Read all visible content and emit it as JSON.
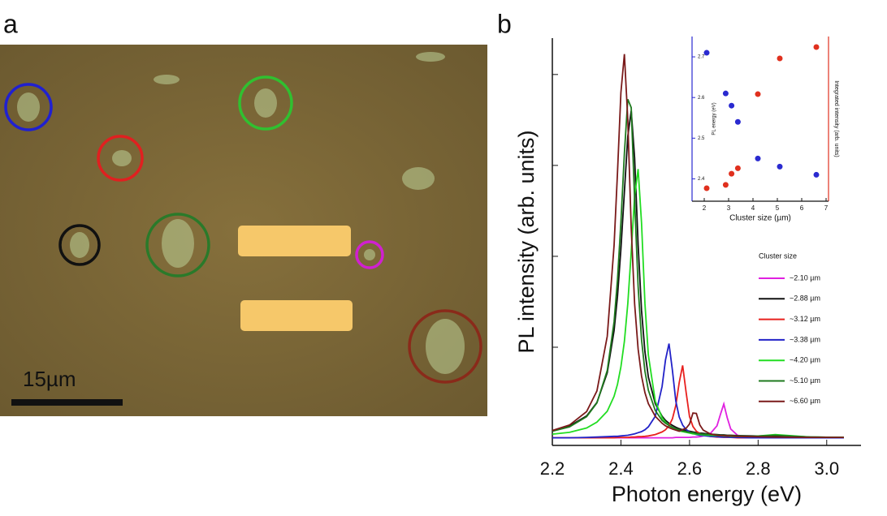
{
  "panels": {
    "a": {
      "label": "a",
      "scale_bar": "15µm"
    }
  },
  "chart_data": [
    {
      "type": "line",
      "panel_label": "b",
      "x_label": "Photon energy (eV)",
      "y_label": "PL intensity (arb. units)",
      "legend_title": "Cluster size",
      "legend": "right",
      "xlim": [
        2.2,
        3.1
      ],
      "ylim": [
        -0.02,
        1.1
      ],
      "xticks": [
        2.2,
        2.4,
        2.6,
        2.8,
        {
          "value": 3.0,
          "label": "3.0"
        }
      ],
      "yticks": [
        0.25,
        0.5,
        0.75,
        1.0
      ],
      "x": [
        2.2,
        2.25,
        2.3,
        2.33,
        2.36,
        2.38,
        2.39,
        2.4,
        2.41,
        2.42,
        2.43,
        2.44,
        2.45,
        2.46,
        2.47,
        2.48,
        2.5,
        2.52,
        2.53,
        2.54,
        2.55,
        2.56,
        2.57,
        2.58,
        2.59,
        2.6,
        2.61,
        2.62,
        2.63,
        2.64,
        2.66,
        2.68,
        2.69,
        2.7,
        2.71,
        2.72,
        2.74,
        2.78,
        2.85,
        2.95,
        3.05
      ],
      "series": [
        {
          "name": "~2.10 µm",
          "color": "#e020e0",
          "values": [
            0.001,
            0.001,
            0.001,
            0.001,
            0.001,
            0.001,
            0.001,
            0.001,
            0.001,
            0.001,
            0.001,
            0.001,
            0.001,
            0.001,
            0.001,
            0.001,
            0.001,
            0.001,
            0.001,
            0.001,
            0.001,
            0.002,
            0.002,
            0.002,
            0.002,
            0.002,
            0.003,
            0.003,
            0.004,
            0.006,
            0.012,
            0.034,
            0.065,
            0.094,
            0.056,
            0.025,
            0.008,
            0.002,
            0.001,
            0.001,
            0.001
          ]
        },
        {
          "name": "~2.88 µm",
          "color": "#111111",
          "values": [
            0.02,
            0.033,
            0.061,
            0.098,
            0.18,
            0.296,
            0.39,
            0.52,
            0.677,
            0.83,
            0.9,
            0.77,
            0.532,
            0.351,
            0.238,
            0.168,
            0.095,
            0.06,
            0.049,
            0.041,
            0.035,
            0.03,
            0.026,
            0.023,
            0.021,
            0.019,
            0.017,
            0.015,
            0.014,
            0.013,
            0.011,
            0.01,
            0.009,
            0.009,
            0.008,
            0.008,
            0.007,
            0.006,
            0.005,
            0.003,
            0.002
          ]
        },
        {
          "name": "~3.12 µm",
          "color": "#e8201e",
          "values": [
            0.001,
            0.001,
            0.001,
            0.001,
            0.001,
            0.001,
            0.002,
            0.002,
            0.002,
            0.002,
            0.003,
            0.003,
            0.004,
            0.004,
            0.005,
            0.006,
            0.01,
            0.017,
            0.023,
            0.034,
            0.053,
            0.09,
            0.153,
            0.2,
            0.126,
            0.059,
            0.032,
            0.019,
            0.013,
            0.009,
            0.005,
            0.003,
            0.003,
            0.002,
            0.002,
            0.002,
            0.001,
            0.001,
            0.001,
            0.001,
            0.001
          ]
        },
        {
          "name": "~3.38 µm",
          "color": "#2222c8",
          "values": [
            0.001,
            0.001,
            0.002,
            0.003,
            0.004,
            0.005,
            0.005,
            0.006,
            0.007,
            0.008,
            0.01,
            0.012,
            0.015,
            0.018,
            0.023,
            0.031,
            0.06,
            0.142,
            0.215,
            0.26,
            0.187,
            0.102,
            0.058,
            0.036,
            0.024,
            0.017,
            0.013,
            0.01,
            0.008,
            0.007,
            0.005,
            0.004,
            0.003,
            0.003,
            0.003,
            0.002,
            0.002,
            0.001,
            0.001,
            0.001,
            0.001
          ]
        },
        {
          "name": "~4.20 µm",
          "color": "#22dd22",
          "values": [
            0.011,
            0.016,
            0.028,
            0.044,
            0.074,
            0.115,
            0.148,
            0.196,
            0.266,
            0.37,
            0.512,
            0.666,
            0.74,
            0.592,
            0.37,
            0.228,
            0.102,
            0.056,
            0.044,
            0.035,
            0.028,
            0.024,
            0.02,
            0.018,
            0.016,
            0.014,
            0.012,
            0.011,
            0.01,
            0.009,
            0.008,
            0.007,
            0.007,
            0.006,
            0.006,
            0.005,
            0.005,
            0.004,
            0.01,
            0.003,
            0.002
          ]
        },
        {
          "name": "~5.10 µm",
          "color": "#1f7a1f",
          "values": [
            0.019,
            0.031,
            0.059,
            0.097,
            0.186,
            0.32,
            0.436,
            0.593,
            0.783,
            0.932,
            0.909,
            0.654,
            0.417,
            0.271,
            0.184,
            0.132,
            0.076,
            0.049,
            0.041,
            0.035,
            0.03,
            0.026,
            0.023,
            0.02,
            0.018,
            0.016,
            0.015,
            0.013,
            0.012,
            0.011,
            0.01,
            0.009,
            0.008,
            0.008,
            0.007,
            0.007,
            0.006,
            0.005,
            0.008,
            0.003,
            0.002
          ]
        },
        {
          "name": "~6.60 µm",
          "color": "#7a1a1a",
          "values": [
            0.021,
            0.036,
            0.073,
            0.13,
            0.28,
            0.53,
            0.73,
            0.95,
            1.056,
            0.875,
            0.578,
            0.369,
            0.245,
            0.171,
            0.125,
            0.095,
            0.06,
            0.041,
            0.034,
            0.029,
            0.025,
            0.022,
            0.019,
            0.024,
            0.027,
            0.039,
            0.069,
            0.068,
            0.036,
            0.022,
            0.012,
            0.008,
            0.007,
            0.007,
            0.006,
            0.006,
            0.005,
            0.004,
            0.003,
            0.002,
            0.002
          ]
        }
      ]
    },
    {
      "type": "scatter",
      "x_label": "Cluster size (µm)",
      "y_label": "PL energy (eV)",
      "y2_label": "Integrated intensity (arb. units)",
      "xlim": [
        1.5,
        7.1
      ],
      "ylim": [
        2.345,
        2.75
      ],
      "y2lim": [
        0,
        1
      ],
      "xticks": [
        2,
        3,
        4,
        5,
        6,
        7
      ],
      "yticks": [
        2.4,
        2.5,
        2.6,
        2.7
      ],
      "x": [
        2.1,
        2.88,
        3.12,
        3.38,
        4.2,
        5.1,
        6.6
      ],
      "series": [
        {
          "color": "#2a2ad0",
          "values": [
            2.71,
            2.61,
            2.58,
            2.54,
            2.45,
            2.43,
            2.41
          ]
        },
        {
          "color": "#e0301e",
          "axis": "y2",
          "values": [
            0.079,
            0.099,
            0.167,
            0.2,
            0.65,
            0.867,
            0.936
          ]
        }
      ]
    }
  ]
}
